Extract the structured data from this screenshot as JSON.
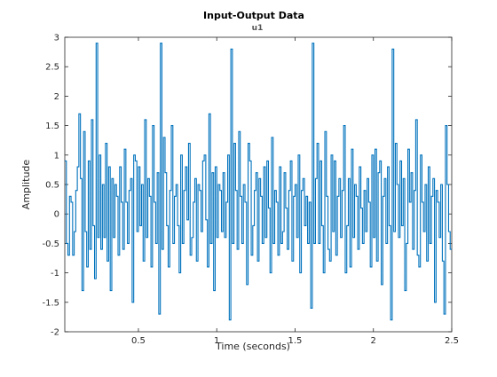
{
  "colors": {
    "series": "#0072bd",
    "axes": "#262626",
    "background": "#ffffff"
  },
  "chart_data": {
    "type": "line",
    "style": "stairs",
    "title": "Input-Output Data",
    "subtitle": "u1",
    "xlabel": "Time (seconds)",
    "ylabel": "Amplitude",
    "xlim": [
      0.03,
      2.5
    ],
    "ylim": [
      -2,
      3
    ],
    "xticks": [
      0.5,
      1,
      1.5,
      2,
      2.5
    ],
    "xtick_labels": [
      "0.5",
      "1",
      "1.5",
      "2",
      "2.5"
    ],
    "yticks": [
      -2,
      -1.5,
      -1,
      -0.5,
      0,
      0.5,
      1,
      1.5,
      2,
      2.5,
      3
    ],
    "ytick_labels": [
      "-2",
      "-1.5",
      "-1",
      "-0.5",
      "0",
      "0.5",
      "1",
      "1.5",
      "2",
      "2.5",
      "3"
    ],
    "grid": false,
    "box": true,
    "sample_time": 0.01,
    "series": [
      {
        "x_start": 0.03,
        "values": [
          0.9,
          -0.5,
          -0.7,
          0.3,
          0.2,
          -0.7,
          -0.3,
          0.4,
          0.8,
          1.7,
          0.6,
          -1.3,
          1.4,
          -0.3,
          -0.9,
          0.9,
          -0.6,
          1.6,
          -0.2,
          -1.1,
          2.9,
          -0.4,
          1.0,
          -0.6,
          0.5,
          -0.4,
          1.2,
          -0.8,
          0.8,
          -1.3,
          0.6,
          -0.4,
          0.5,
          0.3,
          -0.7,
          0.8,
          0.2,
          -0.6,
          1.1,
          0.2,
          -0.5,
          0.4,
          0.6,
          -1.5,
          1.0,
          0.9,
          -0.3,
          0.8,
          -0.2,
          0.5,
          -0.8,
          1.6,
          -0.4,
          0.6,
          0.3,
          -0.9,
          1.5,
          0.2,
          -0.5,
          0.7,
          -1.7,
          2.9,
          -0.6,
          1.3,
          0.7,
          -0.2,
          -0.9,
          0.4,
          1.5,
          -0.5,
          0.3,
          0.5,
          -0.2,
          -1.0,
          1.0,
          -0.5,
          0.4,
          0.8,
          -0.1,
          1.2,
          -0.7,
          -0.4,
          0.2,
          0.6,
          -0.8,
          0.5,
          0.4,
          -0.3,
          0.9,
          1.0,
          -0.1,
          -0.9,
          1.7,
          -0.5,
          0.7,
          -1.3,
          0.8,
          -0.4,
          0.5,
          0.4,
          -0.3,
          0.7,
          -0.4,
          0.2,
          1.0,
          -1.8,
          2.8,
          -0.5,
          1.2,
          0.4,
          -0.6,
          1.4,
          0.3,
          -0.5,
          0.5,
          0.2,
          -1.2,
          1.2,
          0.9,
          -0.7,
          -0.2,
          0.4,
          0.7,
          -0.8,
          0.6,
          0.3,
          -0.5,
          0.8,
          -0.4,
          0.9,
          0.1,
          -1.0,
          1.3,
          -0.5,
          0.4,
          0.2,
          -0.7,
          0.8,
          -0.5,
          -0.3,
          0.7,
          0.1,
          -0.6,
          0.4,
          0.9,
          -0.8,
          0.3,
          0.5,
          -0.4,
          1.0,
          -1.0,
          0.4,
          0.6,
          -0.2,
          0.3,
          -0.5,
          0.2,
          -1.6,
          2.9,
          -0.5,
          0.6,
          1.2,
          -0.5,
          0.9,
          -0.2,
          -1.0,
          1.4,
          0.3,
          -0.6,
          -0.8,
          1.0,
          -0.3,
          0.9,
          -0.7,
          0.3,
          0.6,
          -0.4,
          0.4,
          1.5,
          -1.0,
          -0.2,
          0.6,
          -0.9,
          1.1,
          -0.4,
          0.5,
          0.3,
          -0.6,
          0.8,
          0.1,
          -0.5,
          0.4,
          -0.3,
          0.6,
          0.2,
          -0.9,
          1.0,
          -0.4,
          1.1,
          -0.8,
          0.7,
          0.9,
          -1.2,
          0.3,
          0.6,
          -0.5,
          0.8,
          -0.2,
          -1.8,
          2.8,
          -0.3,
          1.2,
          0.5,
          -0.4,
          0.9,
          -0.2,
          0.6,
          -1.3,
          -0.5,
          1.1,
          0.2,
          0.7,
          -0.6,
          0.4,
          1.6,
          -0.7,
          -0.9,
          1.0,
          0.2,
          -0.3,
          0.5,
          -0.8,
          0.8,
          -0.5,
          0.3,
          0.6,
          -1.5,
          0.4,
          0.2,
          -0.4,
          0.5,
          -0.8,
          -1.7,
          1.5,
          0.5,
          -0.3,
          -0.6
        ]
      }
    ]
  }
}
